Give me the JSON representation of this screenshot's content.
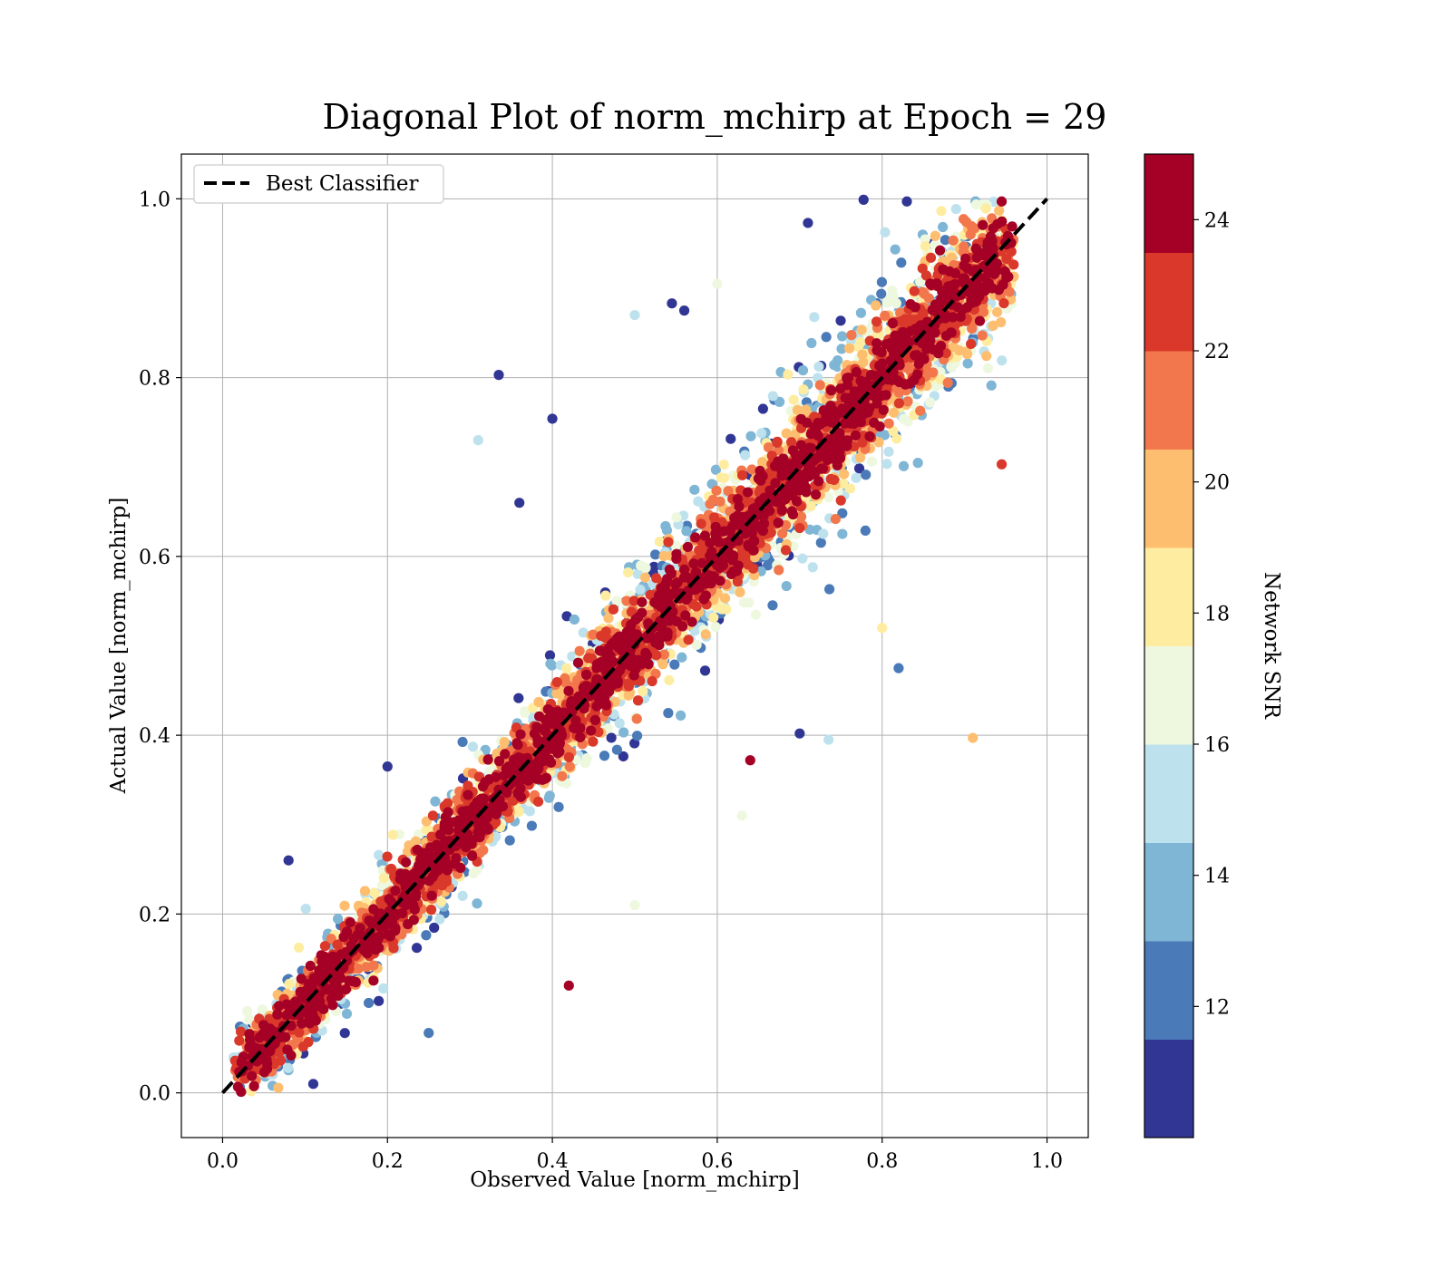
{
  "chart_data": {
    "type": "scatter",
    "title": "Diagonal Plot of norm_mchirp at Epoch = 29",
    "xlabel": "Observed Value [norm_mchirp]",
    "ylabel": "Actual Value [norm_mchirp]",
    "xlim": [
      -0.05,
      1.05
    ],
    "ylim": [
      -0.05,
      1.05
    ],
    "xticks": [
      "0.0",
      "0.2",
      "0.4",
      "0.6",
      "0.8",
      "1.0"
    ],
    "yticks": [
      "0.0",
      "0.2",
      "0.4",
      "0.6",
      "0.8",
      "1.0"
    ],
    "grid": true,
    "legend": {
      "position": "upper-left",
      "entries": [
        "Best Classifier"
      ]
    },
    "reference_line": {
      "name": "Best Classifier",
      "style": "dashed",
      "color": "#000000",
      "x": [
        0,
        1
      ],
      "y": [
        0,
        1
      ]
    },
    "colorbar": {
      "label": "Network SNR",
      "range": [
        10,
        25
      ],
      "ticks": [
        "12",
        "14",
        "16",
        "18",
        "20",
        "22",
        "24"
      ],
      "colormap": "RdYlBu_r",
      "bins": [
        {
          "from": 10.0,
          "to": 11.5,
          "color": "#313695"
        },
        {
          "from": 11.5,
          "to": 13.0,
          "color": "#4a7ab7"
        },
        {
          "from": 13.0,
          "to": 14.5,
          "color": "#7fb5d5"
        },
        {
          "from": 14.5,
          "to": 16.0,
          "color": "#bde2ee"
        },
        {
          "from": 16.0,
          "to": 17.5,
          "color": "#eef8df"
        },
        {
          "from": 17.5,
          "to": 19.0,
          "color": "#feeda1"
        },
        {
          "from": 19.0,
          "to": 20.5,
          "color": "#fdbe70"
        },
        {
          "from": 20.5,
          "to": 22.0,
          "color": "#f3774c"
        },
        {
          "from": 22.0,
          "to": 23.5,
          "color": "#d9382a"
        },
        {
          "from": 23.5,
          "to": 25.0,
          "color": "#a50026"
        }
      ]
    },
    "series": [
      {
        "encoding": "x = observed, y = actual, snr = Network SNR",
        "points": [
          {
            "x": 0.335,
            "y": 0.803,
            "snr": 10.5
          },
          {
            "x": 0.08,
            "y": 0.26,
            "snr": 10.5
          },
          {
            "x": 0.42,
            "y": 0.12,
            "snr": 24.5
          },
          {
            "x": 0.91,
            "y": 0.397,
            "snr": 20.0
          },
          {
            "x": 0.945,
            "y": 0.703,
            "snr": 22.0
          },
          {
            "x": 0.31,
            "y": 0.73,
            "snr": 15.5
          },
          {
            "x": 0.5,
            "y": 0.87,
            "snr": 15.5
          },
          {
            "x": 0.545,
            "y": 0.883,
            "snr": 10.5
          },
          {
            "x": 0.56,
            "y": 0.875,
            "snr": 10.5
          },
          {
            "x": 0.71,
            "y": 0.973,
            "snr": 10.5
          },
          {
            "x": 0.82,
            "y": 0.475,
            "snr": 12.5
          },
          {
            "x": 0.8,
            "y": 0.52,
            "snr": 18.0
          },
          {
            "x": 0.7,
            "y": 0.402,
            "snr": 10.5
          },
          {
            "x": 0.735,
            "y": 0.395,
            "snr": 15.5
          },
          {
            "x": 0.64,
            "y": 0.372,
            "snr": 24.5
          },
          {
            "x": 0.25,
            "y": 0.067,
            "snr": 12.5
          },
          {
            "x": 0.11,
            "y": 0.01,
            "snr": 10.5
          },
          {
            "x": 0.5,
            "y": 0.21,
            "snr": 16.5
          },
          {
            "x": 0.4,
            "y": 0.754,
            "snr": 10.5
          },
          {
            "x": 0.36,
            "y": 0.66,
            "snr": 10.5
          },
          {
            "x": 0.2,
            "y": 0.365,
            "snr": 10.5
          },
          {
            "x": 0.63,
            "y": 0.31,
            "snr": 16.5
          },
          {
            "x": 0.83,
            "y": 0.997,
            "snr": 10.5
          },
          {
            "x": 0.945,
            "y": 0.997,
            "snr": 24.5
          },
          {
            "x": 0.6,
            "y": 0.905,
            "snr": 16.5
          }
        ]
      }
    ]
  }
}
